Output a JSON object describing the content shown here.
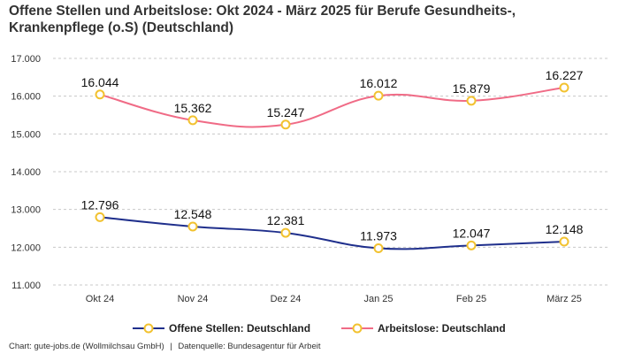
{
  "chart_data": {
    "type": "line",
    "title_line1": "Offene Stellen und Arbeitslose: Okt 2024 - März 2025 für Berufe Gesundheits-,",
    "title_line2": "Krankenpflege (o.S) (Deutschland)",
    "categories": [
      "Okt 24",
      "Nov 24",
      "Dez 24",
      "Jan 25",
      "Feb 25",
      "März 25"
    ],
    "ylim": [
      11000,
      17000
    ],
    "yticks": [
      11000,
      12000,
      13000,
      14000,
      15000,
      16000,
      17000
    ],
    "ytick_labels": [
      "11.000",
      "12.000",
      "13.000",
      "14.000",
      "15.000",
      "16.000",
      "17.000"
    ],
    "grid": true,
    "legend_position": "bottom",
    "series": [
      {
        "name": "Offene Stellen: Deutschland",
        "values": [
          12796,
          12548,
          12381,
          11973,
          12047,
          12148
        ],
        "labels": [
          "12.796",
          "12.548",
          "12.381",
          "11.973",
          "12.047",
          "12.148"
        ],
        "color": "#1f2f8c"
      },
      {
        "name": "Arbeitslose: Deutschland",
        "values": [
          16044,
          15362,
          15247,
          16012,
          15879,
          16227
        ],
        "labels": [
          "16.044",
          "15.362",
          "15.247",
          "16.012",
          "15.879",
          "16.227"
        ],
        "color": "#f06b86"
      }
    ],
    "marker_color": "#f2c230"
  },
  "footer": {
    "source_chart": "Chart: gute-jobs.de (Wollmilchsau GmbH)",
    "separator": "|",
    "source_data": "Datenquelle: Bundesagentur für Arbeit"
  }
}
